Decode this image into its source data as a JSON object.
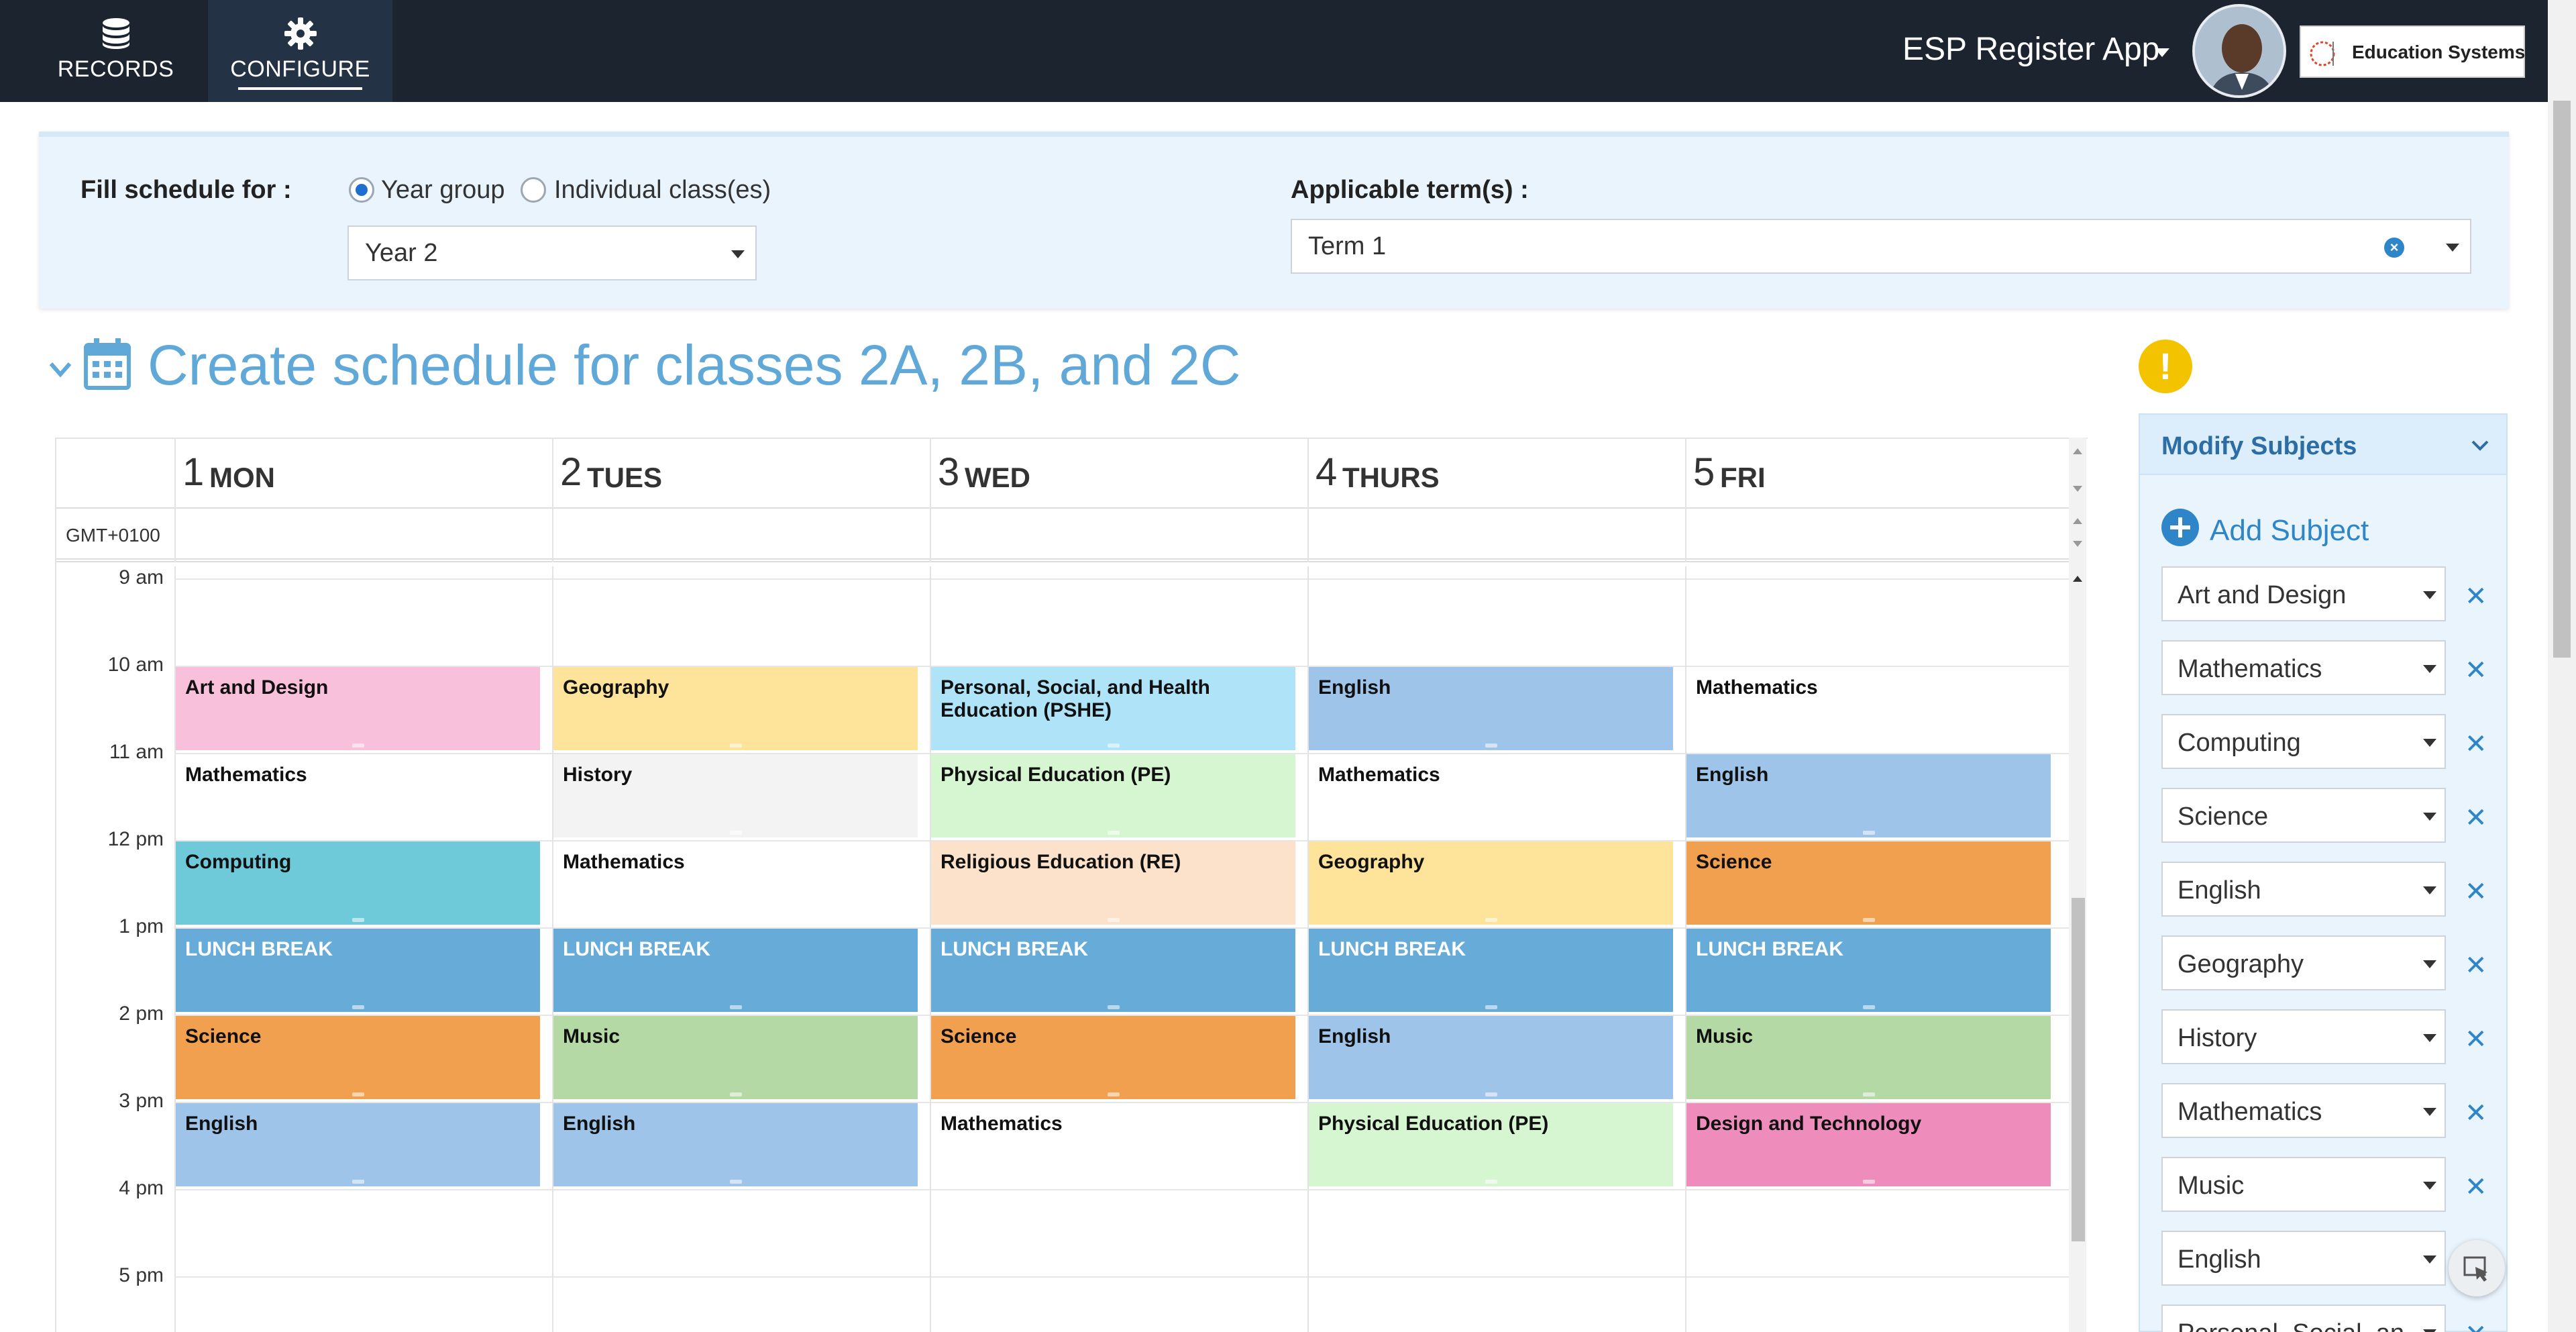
{
  "nav": {
    "items": [
      {
        "label": "RECORDS",
        "icon": "database-icon"
      },
      {
        "label": "CONFIGURE",
        "icon": "gear-icon"
      }
    ],
    "app_title": "ESP Register App",
    "logo_text": "Education Systems"
  },
  "filters": {
    "fill_label": "Fill schedule for :",
    "radio_options": [
      "Year group",
      "Individual class(es)"
    ],
    "selected_radio": "Year group",
    "year_value": "Year 2",
    "terms_label": "Applicable term(s) :",
    "term_value": "Term 1"
  },
  "heading": {
    "title": "Create schedule for classes 2A, 2B, and 2C"
  },
  "calendar": {
    "timezone": "GMT+0100",
    "days": [
      {
        "num": "1",
        "name": "MON"
      },
      {
        "num": "2",
        "name": "TUES"
      },
      {
        "num": "3",
        "name": "WED"
      },
      {
        "num": "4",
        "name": "THURS"
      },
      {
        "num": "5",
        "name": "FRI"
      }
    ],
    "hours": [
      "9 am",
      "10 am",
      "11 am",
      "12 pm",
      "1 pm",
      "2 pm",
      "3 pm",
      "4 pm",
      "5 pm"
    ],
    "colors": {
      "pink": "#f9c0dc",
      "yellow": "#fde49a",
      "cyan": "#aee3f8",
      "blue": "#9fc4e9",
      "white": "#ffffff",
      "grey": "#f2f3f2",
      "green": "#d6f5d1",
      "teal": "#6ec9d9",
      "peach": "#fce2cb",
      "orange": "#f0a04e",
      "lunch": "#67acd9",
      "sage": "#b5d9a5",
      "magenta": "#ee8cbb"
    },
    "events": [
      {
        "day": 0,
        "start": 10,
        "end": 11,
        "title": "Art and Design",
        "color": "pink"
      },
      {
        "day": 1,
        "start": 10,
        "end": 11,
        "title": "Geography",
        "color": "yellow"
      },
      {
        "day": 2,
        "start": 10,
        "end": 11,
        "title": "Personal, Social, and Health Education (PSHE)",
        "color": "cyan"
      },
      {
        "day": 3,
        "start": 10,
        "end": 11,
        "title": "English",
        "color": "blue"
      },
      {
        "day": 4,
        "start": 10,
        "end": 11,
        "title": "Mathematics",
        "color": "white"
      },
      {
        "day": 0,
        "start": 11,
        "end": 12,
        "title": "Mathematics",
        "color": "white"
      },
      {
        "day": 1,
        "start": 11,
        "end": 12,
        "title": "History",
        "color": "grey"
      },
      {
        "day": 2,
        "start": 11,
        "end": 12,
        "title": "Physical Education (PE)",
        "color": "green"
      },
      {
        "day": 3,
        "start": 11,
        "end": 12,
        "title": "Mathematics",
        "color": "white"
      },
      {
        "day": 4,
        "start": 11,
        "end": 12,
        "title": "English",
        "color": "blue"
      },
      {
        "day": 0,
        "start": 12,
        "end": 13,
        "title": "Computing",
        "color": "teal"
      },
      {
        "day": 1,
        "start": 12,
        "end": 13,
        "title": "Mathematics",
        "color": "white"
      },
      {
        "day": 2,
        "start": 12,
        "end": 13,
        "title": "Religious Education (RE)",
        "color": "peach"
      },
      {
        "day": 3,
        "start": 12,
        "end": 13,
        "title": "Geography",
        "color": "yellow"
      },
      {
        "day": 4,
        "start": 12,
        "end": 13,
        "title": "Science",
        "color": "orange"
      },
      {
        "day": 0,
        "start": 13,
        "end": 14,
        "title": "LUNCH BREAK",
        "color": "lunch"
      },
      {
        "day": 1,
        "start": 13,
        "end": 14,
        "title": "LUNCH BREAK",
        "color": "lunch"
      },
      {
        "day": 2,
        "start": 13,
        "end": 14,
        "title": "LUNCH BREAK",
        "color": "lunch"
      },
      {
        "day": 3,
        "start": 13,
        "end": 14,
        "title": "LUNCH BREAK",
        "color": "lunch"
      },
      {
        "day": 4,
        "start": 13,
        "end": 14,
        "title": "LUNCH BREAK",
        "color": "lunch"
      },
      {
        "day": 0,
        "start": 14,
        "end": 15,
        "title": "Science",
        "color": "orange"
      },
      {
        "day": 1,
        "start": 14,
        "end": 15,
        "title": "Music",
        "color": "sage"
      },
      {
        "day": 2,
        "start": 14,
        "end": 15,
        "title": "Science",
        "color": "orange"
      },
      {
        "day": 3,
        "start": 14,
        "end": 15,
        "title": "English",
        "color": "blue"
      },
      {
        "day": 4,
        "start": 14,
        "end": 15,
        "title": "Music",
        "color": "sage"
      },
      {
        "day": 0,
        "start": 15,
        "end": 16,
        "title": "English",
        "color": "blue"
      },
      {
        "day": 1,
        "start": 15,
        "end": 16,
        "title": "English",
        "color": "blue"
      },
      {
        "day": 2,
        "start": 15,
        "end": 16,
        "title": "Mathematics",
        "color": "white"
      },
      {
        "day": 3,
        "start": 15,
        "end": 16,
        "title": "Physical Education (PE)",
        "color": "green"
      },
      {
        "day": 4,
        "start": 15,
        "end": 16,
        "title": "Design and Technology",
        "color": "magenta"
      }
    ]
  },
  "subjects_panel": {
    "title": "Modify Subjects",
    "add_label": "Add Subject",
    "items": [
      "Art and Design",
      "Mathematics",
      "Computing",
      "Science",
      "English",
      "Geography",
      "History",
      "Mathematics",
      "Music",
      "English",
      "Personal, Social, an"
    ]
  }
}
